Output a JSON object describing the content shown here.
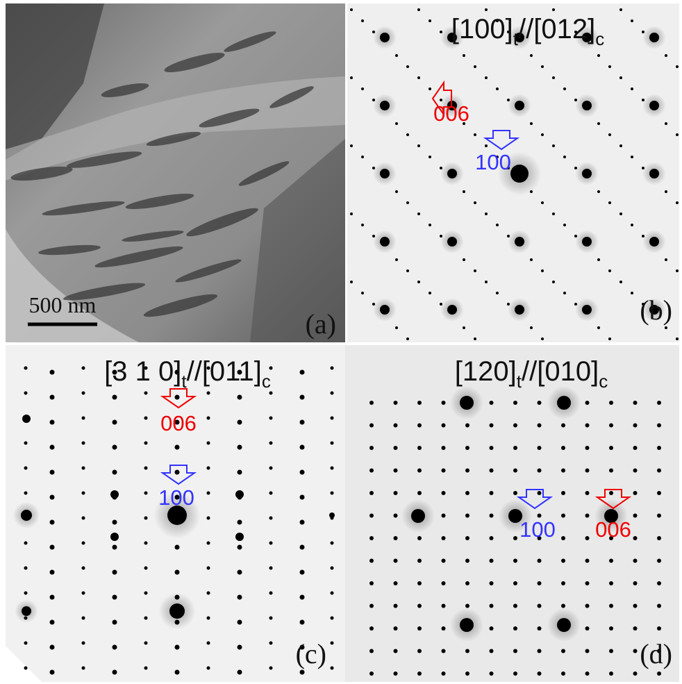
{
  "panels": [
    {
      "label": "(a)",
      "scale_bar": "500 nm"
    },
    {
      "label": "(b)",
      "title_parts": [
        "[100]",
        "t",
        "//[012]",
        "c"
      ],
      "annotations": [
        "006",
        "100"
      ]
    },
    {
      "label": "(c)",
      "title_parts": [
        "[3 1 0]",
        "t",
        "//[011]",
        "c"
      ],
      "annotations": [
        "006",
        "100"
      ]
    },
    {
      "label": "(d)",
      "title_parts": [
        "[120]",
        "t",
        "//[010]",
        "c"
      ],
      "annotations": [
        "100",
        "006"
      ]
    }
  ]
}
